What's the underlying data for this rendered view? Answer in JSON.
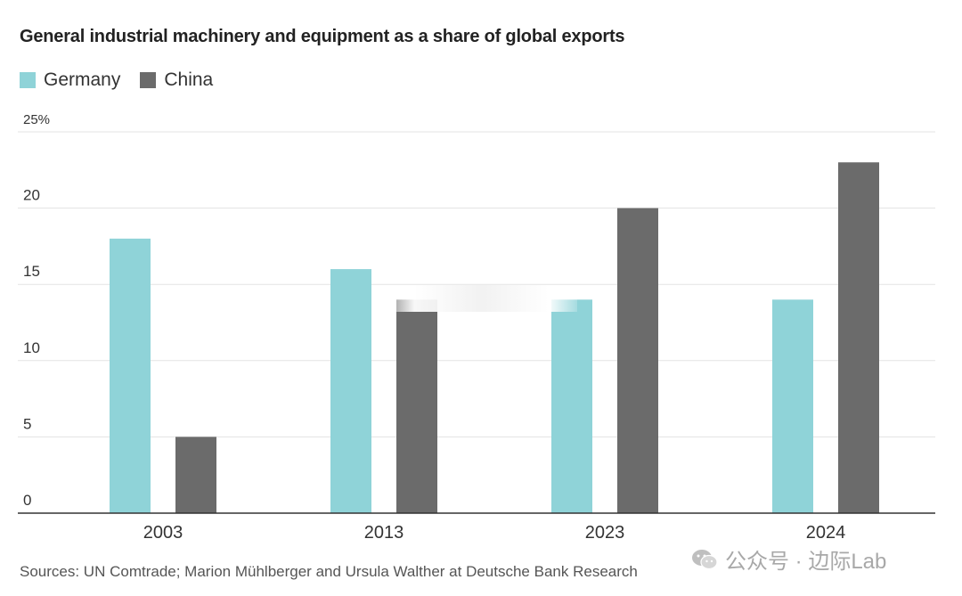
{
  "chart_data": {
    "type": "bar",
    "title": "General industrial machinery and equipment as a share of global exports",
    "categories": [
      "2003",
      "2013",
      "2023",
      "2024"
    ],
    "series": [
      {
        "name": "Germany",
        "color": "#8fd3d8",
        "values": [
          18,
          16,
          14,
          14
        ]
      },
      {
        "name": "China",
        "color": "#6b6b6b",
        "values": [
          5,
          14,
          20,
          23
        ]
      }
    ],
    "ylim": [
      0,
      25
    ],
    "yticks": [
      0,
      5,
      10,
      15,
      20,
      25
    ],
    "ytick_labels": [
      "0",
      "5",
      "10",
      "15",
      "20",
      "25%"
    ],
    "xlabel": "",
    "ylabel": "",
    "grid": true,
    "legend": "top-left"
  },
  "source": "Sources: UN Comtrade; Marion Mühlberger and Ursula Walther at Deutsche Bank Research",
  "watermark": "公众号 · 边际Lab"
}
